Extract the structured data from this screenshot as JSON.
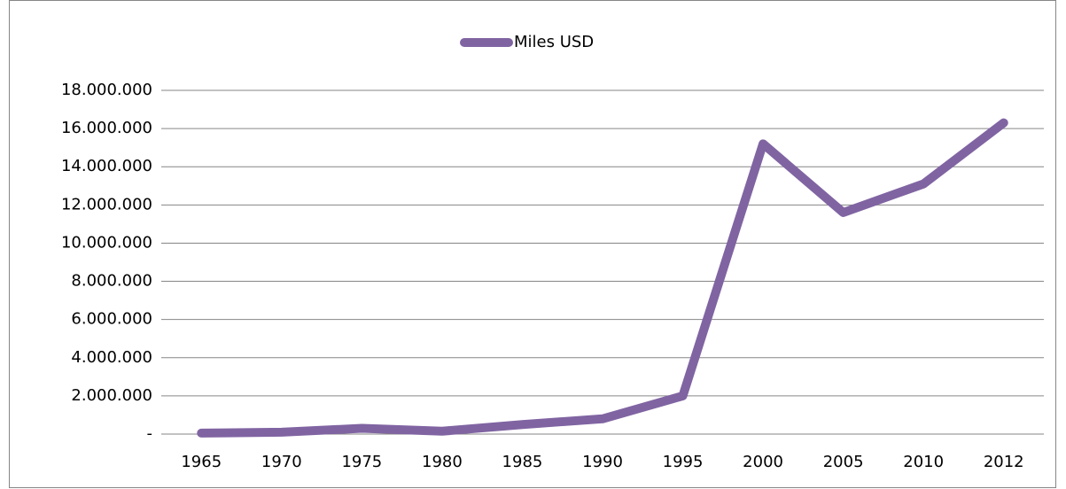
{
  "chart_data": {
    "type": "line",
    "categories": [
      "1965",
      "1970",
      "1975",
      "1980",
      "1985",
      "1990",
      "1995",
      "2000",
      "2005",
      "2010",
      "2012"
    ],
    "series": [
      {
        "name": "Miles USD",
        "color": "#8064a2",
        "values": [
          50000,
          100000,
          300000,
          150000,
          500000,
          800000,
          2000000,
          15200000,
          11600000,
          13100000,
          16300000
        ]
      }
    ],
    "ylim": [
      0,
      18000000
    ],
    "yticks": [
      {
        "value": 0,
        "label": "-"
      },
      {
        "value": 2000000,
        "label": "2.000.000"
      },
      {
        "value": 4000000,
        "label": "4.000.000"
      },
      {
        "value": 6000000,
        "label": "6.000.000"
      },
      {
        "value": 8000000,
        "label": "8.000.000"
      },
      {
        "value": 10000000,
        "label": "10.000.000"
      },
      {
        "value": 12000000,
        "label": "12.000.000"
      },
      {
        "value": 14000000,
        "label": "14.000.000"
      },
      {
        "value": 16000000,
        "label": "16.000.000"
      },
      {
        "value": 18000000,
        "label": "18.000.000"
      }
    ],
    "grid": true,
    "legend": "top"
  }
}
